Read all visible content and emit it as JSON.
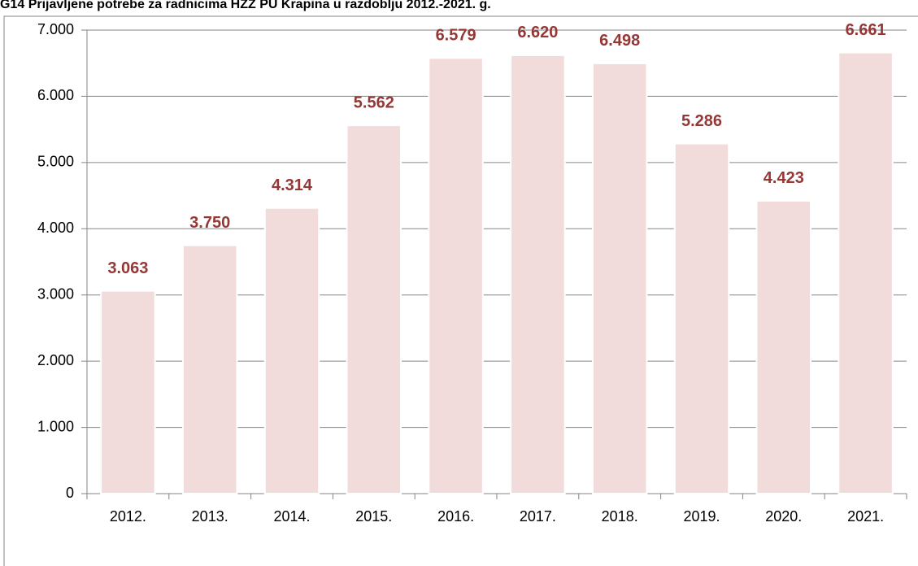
{
  "chart_data": {
    "type": "bar",
    "title": "G14 Prijavljene potrebe za radnicima HZZ PU Krapina u razdoblju 2012.-2021. g.",
    "categories": [
      "2012.",
      "2013.",
      "2014.",
      "2015.",
      "2016.",
      "2017.",
      "2018.",
      "2019.",
      "2020.",
      "2021."
    ],
    "values": [
      3063,
      3750,
      4314,
      5562,
      6579,
      6620,
      6498,
      5286,
      4423,
      6661
    ],
    "value_labels": [
      "3.063",
      "3.750",
      "4.314",
      "5.562",
      "6.579",
      "6.620",
      "6.498",
      "5.286",
      "4.423",
      "6.661"
    ],
    "color": "#f2dcdb",
    "label_color": "#953735",
    "ylim": [
      0,
      7000
    ],
    "yticks": [
      {
        "value": 0,
        "label": "0"
      },
      {
        "value": 1000,
        "label": "1.000"
      },
      {
        "value": 2000,
        "label": "2.000"
      },
      {
        "value": 3000,
        "label": "3.000"
      },
      {
        "value": 4000,
        "label": "4.000"
      },
      {
        "value": 5000,
        "label": "5.000"
      },
      {
        "value": 6000,
        "label": "6.000"
      },
      {
        "value": 7000,
        "label": "7.000"
      }
    ],
    "grid": true
  }
}
